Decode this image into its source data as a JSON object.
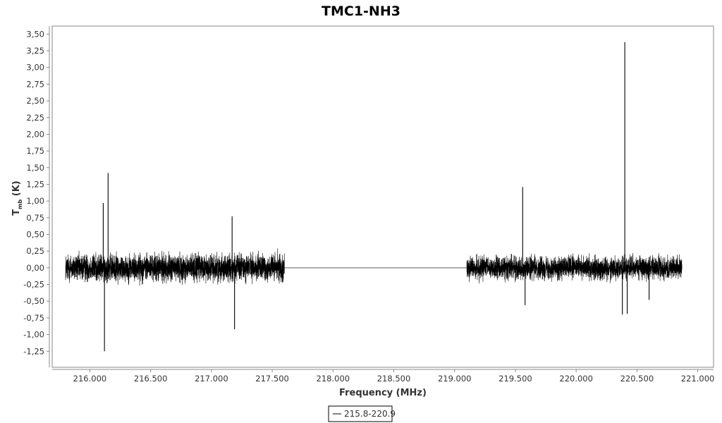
{
  "colors": {
    "series": "#000000",
    "axis": "#888888",
    "plot_border": "#888888",
    "background": "#ffffff"
  },
  "chart_data": {
    "type": "line",
    "title": "TMC1-NH3",
    "xlabel": "Frequency (MHz)",
    "ylabel_main": "T",
    "ylabel_sub": "mb",
    "ylabel_unit": " (K)",
    "xlim": [
      215.69,
      221.13
    ],
    "ylim": [
      -1.49,
      3.62
    ],
    "x_ticks": [
      216.0,
      216.5,
      217.0,
      217.5,
      218.0,
      218.5,
      219.0,
      219.5,
      220.0,
      220.5,
      221.0
    ],
    "x_tick_labels": [
      "216.000",
      "216.500",
      "217.000",
      "217.500",
      "218.000",
      "218.500",
      "219.000",
      "219.500",
      "220.000",
      "220.500",
      "221.000"
    ],
    "y_ticks": [
      -1.25,
      -1.0,
      -0.75,
      -0.5,
      -0.25,
      0.0,
      0.25,
      0.5,
      0.75,
      1.0,
      1.25,
      1.5,
      1.75,
      2.0,
      2.25,
      2.5,
      2.75,
      3.0,
      3.25,
      3.5
    ],
    "y_tick_labels": [
      "-1,25",
      "-1,00",
      "-0,75",
      "-0,50",
      "-0,25",
      "0,00",
      "0,25",
      "0,50",
      "0,75",
      "1,00",
      "1,25",
      "1,50",
      "1,75",
      "2,00",
      "2,25",
      "2,50",
      "2,75",
      "3,00",
      "3,25",
      "3,50"
    ],
    "grid": false,
    "legend_position": "bottom-center",
    "series": [
      {
        "name": "215.8-220.9",
        "segments": [
          {
            "x_start": 215.8,
            "x_end": 217.6,
            "noise_amplitude": 0.3
          },
          {
            "x_start": 217.6,
            "x_end": 219.1,
            "constant": 0.0
          },
          {
            "x_start": 219.1,
            "x_end": 220.87,
            "noise_amplitude": 0.25
          }
        ],
        "spikes": [
          {
            "x": 216.11,
            "y_max": 0.97,
            "y_min": 0.0
          },
          {
            "x": 216.12,
            "y_max": 0.1,
            "y_min": -1.25
          },
          {
            "x": 216.15,
            "y_max": 1.42,
            "y_min": 0.0
          },
          {
            "x": 217.17,
            "y_max": 0.77,
            "y_min": 0.0
          },
          {
            "x": 217.19,
            "y_max": 0.0,
            "y_min": -0.92
          },
          {
            "x": 219.56,
            "y_max": 1.21,
            "y_min": 0.0
          },
          {
            "x": 219.58,
            "y_max": 0.0,
            "y_min": -0.56
          },
          {
            "x": 220.38,
            "y_max": 0.0,
            "y_min": -0.7
          },
          {
            "x": 220.4,
            "y_max": 3.38,
            "y_min": 0.0
          },
          {
            "x": 220.42,
            "y_max": 0.0,
            "y_min": -0.69
          },
          {
            "x": 220.6,
            "y_max": 0.0,
            "y_min": -0.48
          }
        ]
      }
    ]
  }
}
